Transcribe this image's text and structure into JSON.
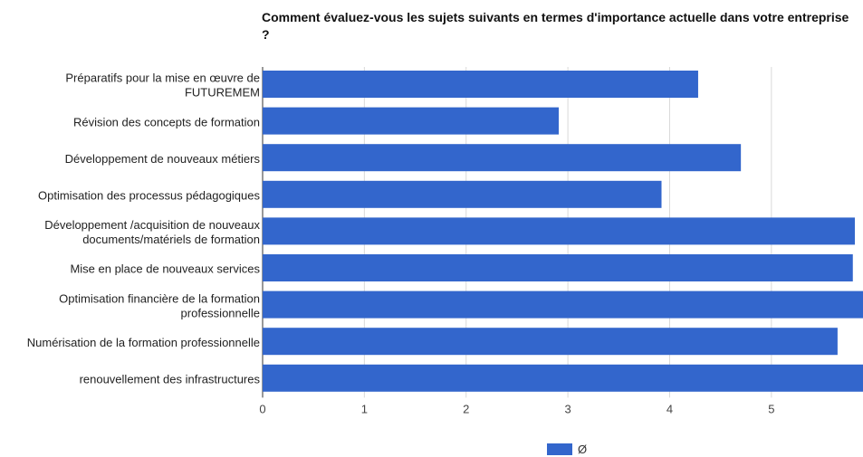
{
  "chart_data": {
    "type": "bar",
    "orientation": "horizontal",
    "title": "Comment évaluez-vous les sujets suivants en termes d'importance actuelle dans votre entreprise ?",
    "categories": [
      [
        "Préparatifs pour la mise en œuvre de",
        "FUTUREMEM"
      ],
      [
        "Révision des concepts de formation"
      ],
      [
        "Développement de nouveaux métiers"
      ],
      [
        "Optimisation des processus pédagogiques"
      ],
      [
        "Développement /acquisition de nouveaux",
        "documents/matériels de formation"
      ],
      [
        "Mise en place de nouveaux services"
      ],
      [
        "Optimisation financière de la formation",
        "professionnelle"
      ],
      [
        "Numérisation de la formation professionnelle"
      ],
      [
        "renouvellement des infrastructures"
      ]
    ],
    "series": [
      {
        "name": "Ø",
        "color": "#3366cc",
        "values": [
          4.28,
          2.91,
          4.7,
          3.92,
          5.82,
          5.8,
          5.9,
          5.65,
          5.9
        ]
      }
    ],
    "xlim": [
      0,
      5.9
    ],
    "xticks": [
      0,
      1,
      2,
      3,
      4,
      5
    ],
    "grid": true,
    "legend_position": "bottom"
  }
}
